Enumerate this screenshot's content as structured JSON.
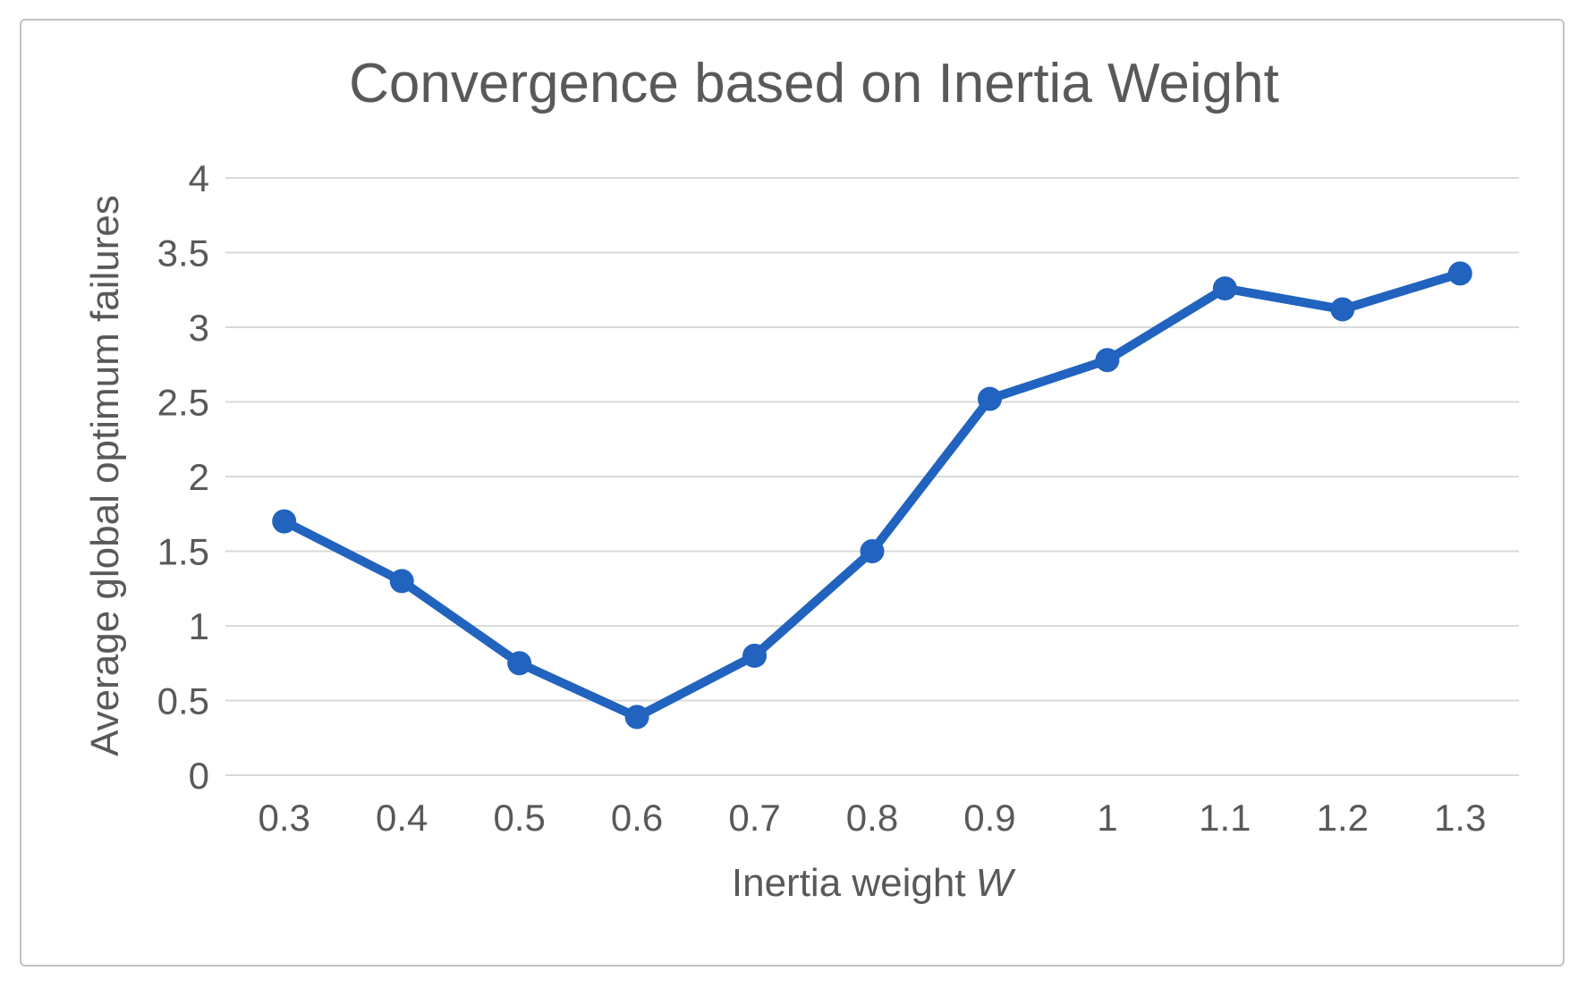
{
  "chart_data": {
    "type": "line",
    "title": "Convergence based on Inertia Weight",
    "xlabel": "Inertia weight W",
    "xlabel_plain": "Inertia weight",
    "xlabel_symbol": "W",
    "ylabel": "Average global optimum failures",
    "categories": [
      "0.3",
      "0.4",
      "0.5",
      "0.6",
      "0.7",
      "0.8",
      "0.9",
      "1",
      "1.1",
      "1.2",
      "1.3"
    ],
    "values": [
      1.7,
      1.3,
      0.75,
      0.39,
      0.8,
      1.5,
      2.52,
      2.78,
      3.26,
      3.12,
      3.36
    ],
    "ylim": [
      0,
      4
    ],
    "ytick_step": 0.5,
    "yticks": [
      "0",
      "0.5",
      "1",
      "1.5",
      "2",
      "2.5",
      "3",
      "3.5",
      "4"
    ],
    "grid": true,
    "legend": false,
    "marker": "circle",
    "colors": {
      "line": "#2163be",
      "gridline": "#d9d9d9",
      "text": "#595959",
      "frame_border": "#c3c3c3",
      "background": "#ffffff"
    }
  }
}
